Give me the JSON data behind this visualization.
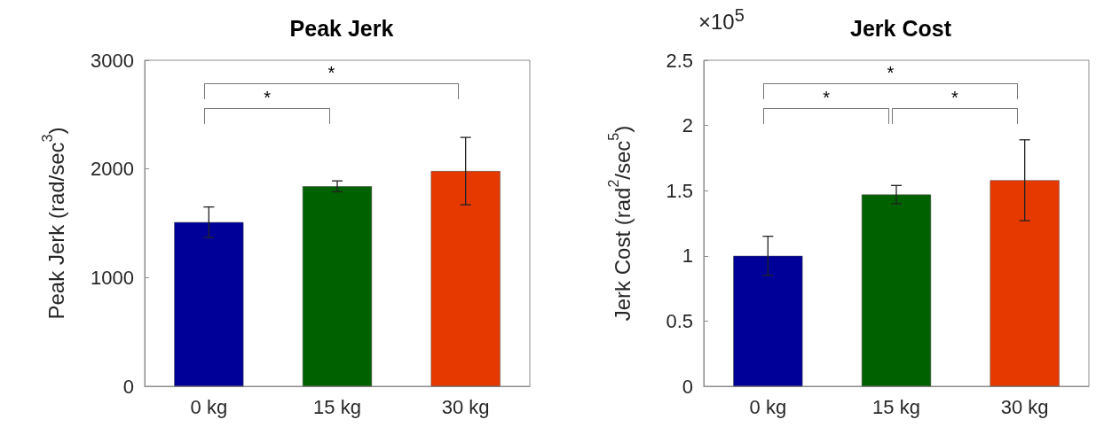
{
  "chart_data": [
    {
      "type": "bar",
      "title": "Peak Jerk",
      "ylabel": "Peak Jerk (rad/sec$^{3}$)",
      "categories": [
        "0 kg",
        "15 kg",
        "30 kg"
      ],
      "values": [
        1510,
        1840,
        1980
      ],
      "colors": [
        "#000099",
        "#006100",
        "#e63900"
      ],
      "errors": [
        140,
        50,
        310
      ],
      "ylim": [
        0,
        3000
      ],
      "yticks": [
        0,
        1000,
        2000,
        3000
      ],
      "grid": false,
      "annotations": [
        "*",
        "*"
      ]
    },
    {
      "type": "bar",
      "title": "Jerk Cost",
      "ylabel": "Jerk Cost (rad$^{2}$/sec$^{5}$)",
      "categories": [
        "0 kg",
        "15 kg",
        "30 kg"
      ],
      "values": [
        1.0,
        1.47,
        1.58
      ],
      "colors": [
        "#000099",
        "#006100",
        "#e63900"
      ],
      "errors": [
        0.15,
        0.07,
        0.31
      ],
      "ylim": [
        0,
        2.5
      ],
      "yticks": [
        0,
        0.5,
        1,
        1.5,
        2,
        2.5
      ],
      "grid": false,
      "annotations": [
        "×10$^{5}$",
        "*",
        "*",
        "*"
      ]
    }
  ]
}
